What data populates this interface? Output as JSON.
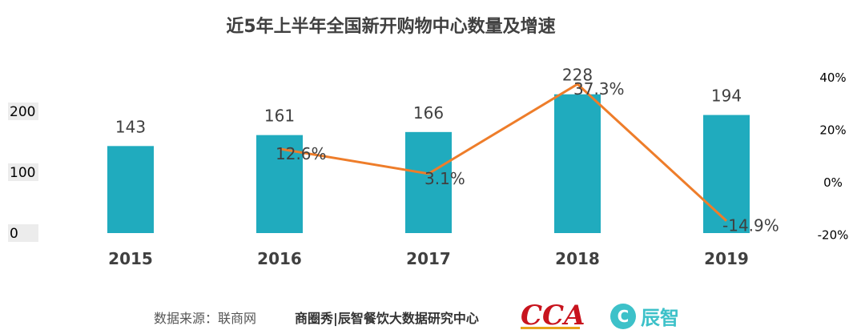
{
  "chart_data": {
    "type": "bar",
    "title": "近5年上半年全国新开购物中心数量及增速",
    "categories": [
      "2015",
      "2016",
      "2017",
      "2018",
      "2019"
    ],
    "series": [
      {
        "type": "bar",
        "values": [
          143,
          161,
          166,
          228,
          194
        ],
        "labels": [
          "143",
          "161",
          "166",
          "228",
          "194"
        ]
      },
      {
        "type": "line",
        "axis": "right",
        "values": [
          null,
          12.6,
          3.1,
          37.3,
          -14.9
        ],
        "labels": [
          "",
          "12.6%",
          "3.1%",
          "37.3%",
          "-14.9%"
        ]
      }
    ],
    "y_left": {
      "ylim": [
        0,
        250
      ],
      "ticks": [
        0,
        100,
        200
      ],
      "tick_labels": [
        "0",
        "100",
        "200"
      ]
    },
    "y_right": {
      "ylim": [
        -20,
        40
      ],
      "ticks": [
        -20,
        0,
        20,
        40
      ],
      "tick_labels": [
        "-20%",
        "0%",
        "20%",
        "40%"
      ]
    },
    "colors": {
      "bar": "#20ABBE",
      "line": "#EE7D2A"
    },
    "grid": false
  },
  "footer": {
    "source": "数据来源：联商网",
    "credit": "商圈秀|辰智餐饮大数据研究中心",
    "logo_cca": "CCA",
    "logo_cz": "辰智"
  }
}
